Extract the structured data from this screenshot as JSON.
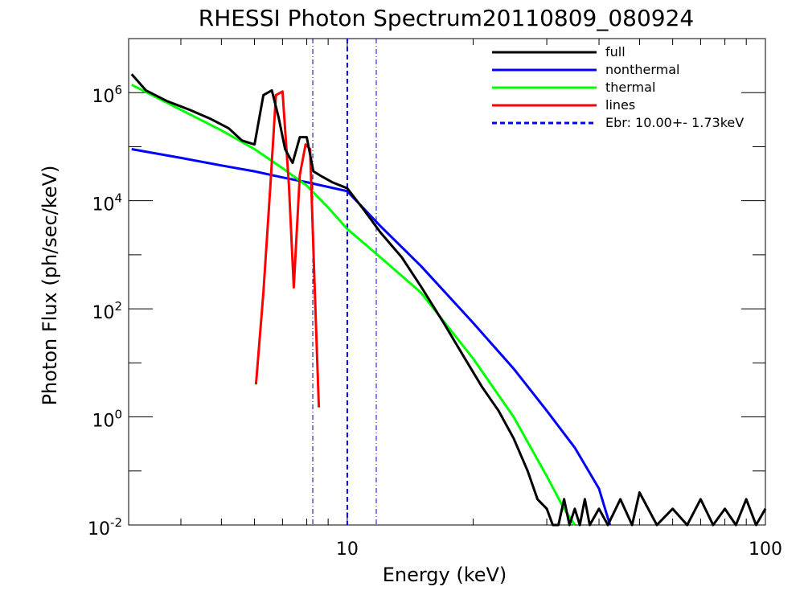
{
  "chart_data": {
    "type": "line",
    "title": "RHESSI Photon Spectrum20110809_080924",
    "xlabel": "Energy (keV)",
    "ylabel": "Photon Flux (ph/sec/keV)",
    "xscale": "log",
    "yscale": "log",
    "xlim": [
      3.0,
      100
    ],
    "ylim": [
      0.01,
      10000000
    ],
    "x_tick_labels": [
      "10",
      "100"
    ],
    "y_tick_labels": [
      {
        "base": "10",
        "exp": "6"
      },
      {
        "base": "10",
        "exp": "4"
      },
      {
        "base": "10",
        "exp": "2"
      },
      {
        "base": "10",
        "exp": "0"
      },
      {
        "base": "10",
        "exp": "-2"
      }
    ],
    "legend_position": "top-right",
    "series": [
      {
        "name": "full",
        "color": "#000000",
        "x": [
          3.05,
          3.3,
          3.7,
          4.2,
          4.7,
          5.2,
          5.6,
          6.0,
          6.3,
          6.6,
          6.85,
          7.1,
          7.4,
          7.7,
          8.0,
          8.3,
          8.7,
          9.2,
          10.0,
          11.0,
          12.0,
          13.5,
          15.0,
          17.0,
          19.0,
          21.0,
          23.0,
          25.0,
          27.0,
          28.5,
          30.0,
          31.0,
          32.0,
          33.0,
          34.0,
          35.0,
          36.0,
          37.0,
          38.0,
          40.0,
          42.0,
          45.0,
          48.0,
          50.0,
          55.0,
          60.0,
          65.0,
          70.0,
          75.0,
          80.0,
          85.0,
          90.0,
          95.0,
          100.0
        ],
        "y": [
          2200000,
          1100000,
          700000,
          480000,
          330000,
          220000,
          130000,
          110000,
          900000,
          1100000,
          350000,
          90000,
          50000,
          150000,
          150000,
          35000,
          28000,
          22000,
          17000,
          6500,
          2600,
          900,
          260,
          55,
          13,
          3.6,
          1.3,
          0.4,
          0.1,
          0.03,
          0.02,
          0.008,
          0.01,
          0.03,
          0.006,
          0.02,
          0.009,
          0.03,
          0.007,
          0.02,
          0.01,
          0.03,
          0.008,
          0.04,
          0.01,
          0.02,
          0.009,
          0.03,
          0.01,
          0.02,
          0.008,
          0.03,
          0.01,
          0.02
        ]
      },
      {
        "name": "nonthermal",
        "color": "#0000ff",
        "x": [
          3.05,
          4.0,
          5.0,
          6.0,
          7.0,
          8.0,
          9.0,
          10.0,
          12.0,
          15.0,
          20.0,
          25.0,
          30.0,
          35.0,
          40.0,
          42.5
        ],
        "y": [
          90000,
          62000,
          45000,
          35000,
          27000,
          22000,
          18000,
          15000,
          3400,
          620,
          55,
          7.8,
          1.3,
          0.27,
          0.047,
          0.01
        ]
      },
      {
        "name": "thermal",
        "color": "#00ff00",
        "x": [
          3.05,
          4.0,
          5.0,
          6.0,
          7.0,
          8.0,
          9.0,
          10.0,
          12.0,
          15.0,
          20.0,
          25.0,
          30.0,
          33.0,
          35.0
        ],
        "y": [
          1400000,
          480000,
          200000,
          90000,
          40000,
          19000,
          7500,
          3000,
          900,
          200,
          12,
          1,
          0.08,
          0.02,
          0.01
        ]
      },
      {
        "name": "lines",
        "color": "#ff0000",
        "x": [
          6.05,
          6.3,
          6.55,
          6.75,
          7.0,
          7.25,
          7.45,
          7.7,
          7.95,
          8.15,
          8.35,
          8.55
        ],
        "y": [
          4,
          200,
          20000,
          900000,
          1050000,
          20000,
          250,
          30000,
          110000,
          90000,
          300,
          1.5
        ]
      }
    ],
    "reference_lines": [
      {
        "label": "Ebr: 10.00+-  1.73keV",
        "x": 10.0,
        "color": "#0000ff",
        "style": "dashed"
      },
      {
        "x": 8.27,
        "color": "#000080",
        "style": "dash-dot"
      },
      {
        "x": 11.73,
        "color": "#0000ff",
        "style": "dash-dot"
      }
    ]
  }
}
